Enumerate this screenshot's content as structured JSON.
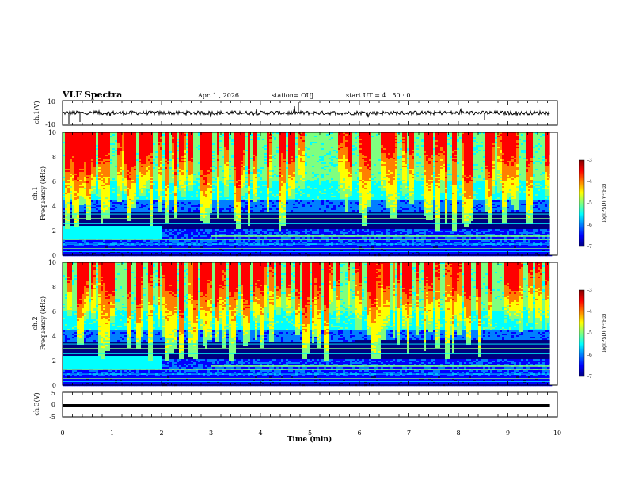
{
  "header": {
    "title": "VLF Spectra",
    "date": "Apr. 1 , 2026",
    "station": "station= OUJ",
    "start": "start UT =  4 : 50 : 0"
  },
  "chart_data": [
    {
      "type": "line",
      "panel": "ch1-waveform",
      "ylabel": "ch.1(V)",
      "ylim": [
        -10,
        10
      ],
      "y_ticks": [
        "10",
        "-10"
      ],
      "trace_level": 0,
      "line_color": "#000000"
    },
    {
      "type": "heatmap",
      "panel": "ch1-spectrogram",
      "ylabel_top": "ch.1",
      "ylabel": "Frequency (kHz)",
      "ylim": [
        0,
        10
      ],
      "y_ticks": [
        "0",
        "2",
        "4",
        "6",
        "8",
        "10"
      ],
      "xlim": [
        0,
        9.85
      ],
      "colorbar": {
        "label": "log(PSD)(V²/Hz)",
        "range": [
          -7,
          -3
        ],
        "ticks": [
          "-3",
          "-4",
          "-5",
          "-6",
          "-7"
        ],
        "colors": [
          "#00007f",
          "#0000ff",
          "#007fff",
          "#00ffff",
          "#7fff7f",
          "#ffff00",
          "#ff7f00",
          "#ff0000",
          "#7f0000"
        ]
      }
    },
    {
      "type": "heatmap",
      "panel": "ch2-spectrogram",
      "ylabel_top": "ch.2",
      "ylabel": "Frequency (kHz)",
      "ylim": [
        0,
        10
      ],
      "y_ticks": [
        "0",
        "2",
        "4",
        "6",
        "8",
        "10"
      ],
      "xlim": [
        0,
        9.85
      ],
      "colorbar": {
        "label": "log(PSD)(V²/Hz)",
        "range": [
          -7,
          -3
        ],
        "ticks": [
          "-3",
          "-4",
          "-5",
          "-6",
          "-7"
        ],
        "colors": [
          "#00007f",
          "#0000ff",
          "#007fff",
          "#00ffff",
          "#7fff7f",
          "#ffff00",
          "#ff7f00",
          "#ff0000",
          "#7f0000"
        ]
      }
    },
    {
      "type": "line",
      "panel": "ch3-waveform",
      "ylabel": "ch.3(V)",
      "ylim": [
        -5,
        5
      ],
      "y_ticks": [
        "5",
        "0",
        "-5"
      ],
      "trace_level": -0.5,
      "line_color": "#000000"
    }
  ],
  "x_axis": {
    "label": "Time (min)",
    "range": [
      0,
      10
    ],
    "ticks": [
      "0",
      "1",
      "2",
      "3",
      "4",
      "5",
      "6",
      "7",
      "8",
      "9",
      "10"
    ]
  }
}
